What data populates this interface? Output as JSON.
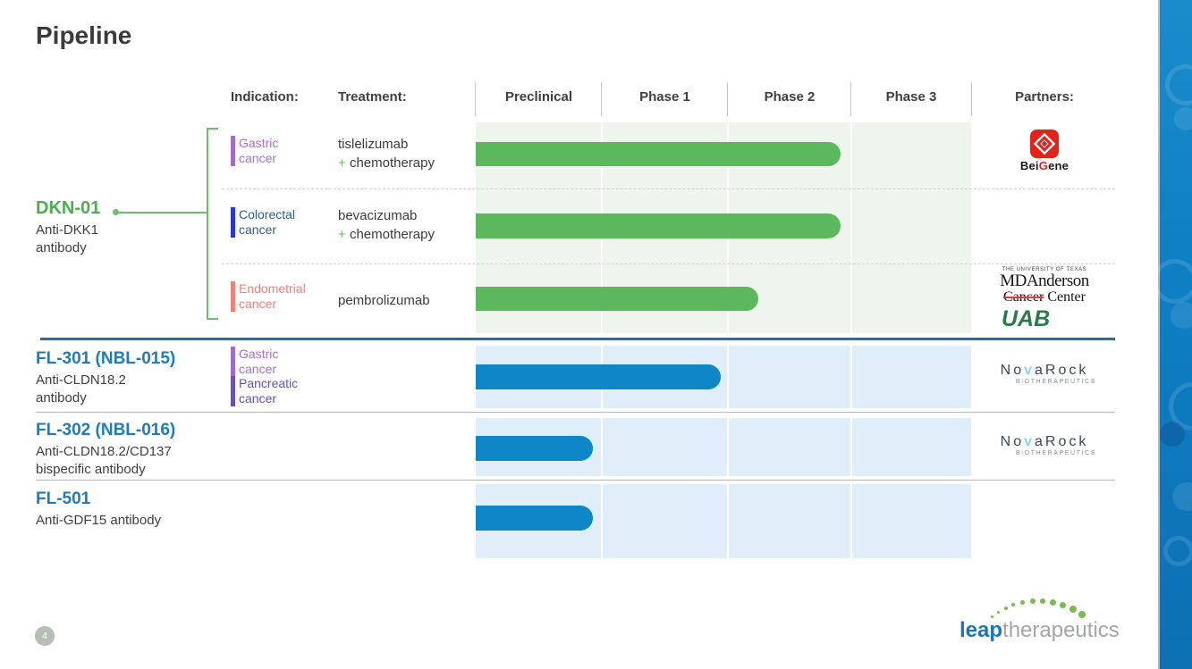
{
  "page": {
    "title": "Pipeline",
    "page_number": "4"
  },
  "header": {
    "indication_label": "Indication:",
    "treatment_label": "Treatment:",
    "phases": [
      "Preclinical",
      "Phase 1",
      "Phase 2",
      "Phase 3"
    ],
    "partners_label": "Partners:"
  },
  "programs": {
    "dkn01": {
      "name": "DKN-01",
      "desc1": "Anti-DKK1",
      "desc2": "antibody",
      "rows": [
        {
          "indication_line1": "Gastric",
          "indication_line2": "cancer",
          "treatment_line1": "tislelizumab",
          "plus": "+",
          "treatment_line2": "chemotherapy",
          "stage_reached": "Phase 2",
          "progress_units": 2.9
        },
        {
          "indication_line1": "Colorectal",
          "indication_line2": "cancer",
          "treatment_line1": "bevacizumab",
          "plus": "+",
          "treatment_line2": "chemotherapy",
          "stage_reached": "Phase 2",
          "progress_units": 2.9
        },
        {
          "indication_line1": "Endometrial",
          "indication_line2": "cancer",
          "treatment_line1": "pembrolizumab",
          "stage_reached": "Phase 2",
          "progress_units": 2.25
        }
      ]
    },
    "fl301": {
      "name": "FL-301 (NBL-015)",
      "desc1": "Anti-CLDN18.2",
      "desc2": "antibody",
      "indications": [
        {
          "line1": "Gastric",
          "line2": "cancer"
        },
        {
          "line1": "Pancreatic",
          "line2": "cancer"
        }
      ],
      "stage_reached": "Phase 1",
      "progress_units": 1.95
    },
    "fl302": {
      "name": "FL-302 (NBL-016)",
      "desc1": "Anti-CLDN18.2/CD137",
      "desc2": "bispecific antibody",
      "stage_reached": "Preclinical",
      "progress_units": 0.93
    },
    "fl501": {
      "name": "FL-501",
      "desc1": "Anti-GDF15 antibody",
      "stage_reached": "Preclinical",
      "progress_units": 0.93
    }
  },
  "partners": {
    "beigene": {
      "name_pre": "Bei",
      "name_g": "G",
      "name_post": "ene"
    },
    "mdanderson": {
      "line1": "THE UNIVERSITY OF TEXAS",
      "line2": "MDAnderson",
      "line3_struck": "Cancer",
      "line3_rest": " Center"
    },
    "uab": {
      "label": "UAB"
    },
    "novarock": {
      "name_pre": "No",
      "name_v": "v",
      "name_post": "aRock",
      "sub_pre": "B",
      "sub_accent": "I",
      "sub_post": "OTHERAPEUTICS"
    }
  },
  "footer": {
    "leap": "leap",
    "therapeutics": "therapeutics"
  },
  "colors": {
    "green_bar": "#5cb85c",
    "green_track": "#edf5ec",
    "blue_bar": "#0f86c5",
    "blue_track": "#dfeef8",
    "accent_navy": "#3c688e",
    "dkn_green": "#4cae51",
    "fl_blue": "#1d7cbd",
    "gastric_purple": "#a06cc4",
    "gastric_text": "#a472c8",
    "colorectal_marker": "#2a35d8",
    "colorectal_text": "#2d6085",
    "endometrial_salmon": "#ef8177",
    "pancreatic_purple": "#6a51b4",
    "beigene_red": "#e2231a",
    "uab_green": "#2c7a4b",
    "leap_blue": "#1b75bc",
    "dots_green": "#7cb952",
    "sidebar_blue": "#0f7fc4"
  }
}
